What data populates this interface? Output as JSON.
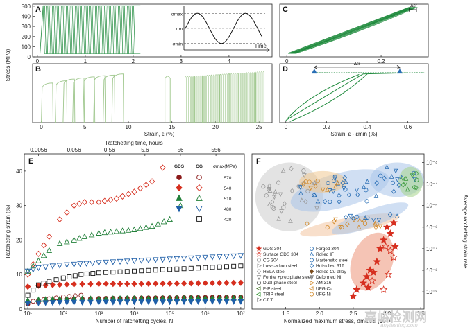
{
  "chart_data": [
    {
      "panel": "A",
      "type": "line",
      "ylabel": "Stress (MPa)",
      "yticks": [
        "0",
        "100",
        "200",
        "300",
        "400",
        "500"
      ],
      "xticks": [
        "0",
        "1",
        "2",
        "3",
        "4"
      ],
      "xlim": [
        -0.1,
        4.9
      ],
      "ylim": [
        0,
        520
      ],
      "series": [
        {
          "color": "#1e8a3c",
          "loops_x_start": [
            0.05,
            0.32,
            0.6,
            0.9,
            1.2,
            1.5,
            1.8,
            2.1
          ],
          "upper_stress": 520
        }
      ],
      "inset": {
        "labels": [
          "σmax",
          "σm",
          "σmin"
        ],
        "xlabel": "Time",
        "level_fractions": [
          0.85,
          0.5,
          0.15
        ]
      }
    },
    {
      "panel": "B",
      "type": "line",
      "xlabel": "Strain, ε (%)",
      "xticks": [
        "0",
        "5",
        "10",
        "15",
        "20",
        "25"
      ],
      "xlim": [
        -1,
        26.5
      ],
      "ylim": [
        0,
        520
      ],
      "series": [
        {
          "color": "#9fc78d",
          "plateau_stress": [
            350,
            370,
            385,
            395,
            405,
            415,
            420,
            430
          ]
        }
      ]
    },
    {
      "panel": "C",
      "type": "line",
      "xticks": [
        "0",
        "0.2"
      ],
      "xlim": [
        -0.015,
        0.3
      ],
      "ylim": [
        0,
        520
      ],
      "annotations": [
        "Δεr"
      ]
    },
    {
      "panel": "D",
      "type": "line",
      "xlabel": "Strain, ε - εmin (%)",
      "xticks": [
        "0",
        "0.2",
        "0.4",
        "0.6"
      ],
      "xlim": [
        -0.03,
        0.7
      ],
      "ylim": [
        0,
        520
      ],
      "annotations": [
        "Δεr"
      ],
      "arrow_range": [
        0.14,
        0.56
      ]
    },
    {
      "panel": "E",
      "type": "scatter",
      "xlabel": "Number of ratchetting cycles, N",
      "ylabel": "Ratchetting strain (%)",
      "top_axis_label": "Ratchetting time, hours",
      "top_ticks": [
        "0.0056",
        "0.056",
        "0.56",
        "5.6",
        "56",
        "556"
      ],
      "top_tick_x_log": [
        1.3,
        2.3,
        3.3,
        4.3,
        5.3,
        6.3
      ],
      "xlim_log": [
        0.9,
        7.1
      ],
      "ylim": [
        0,
        45
      ],
      "yticks": [
        "0",
        "10",
        "20",
        "30",
        "40"
      ],
      "xticks": [
        "10¹",
        "10²",
        "10³",
        "10⁴",
        "10⁵",
        "10⁶",
        "10⁷"
      ],
      "legend": {
        "col1": "GDS",
        "col2": "CG",
        "col3": "σmax(MPa)"
      },
      "series": [
        {
          "name": "570",
          "marker": "circle",
          "color": "#8b1a1a",
          "gds": [
            [
              1,
              1.5
            ],
            [
              1.3,
              2
            ],
            [
              1.7,
              2.5
            ],
            [
              2.3,
              2.9
            ],
            [
              3,
              3.1
            ],
            [
              4,
              3.2
            ],
            [
              5,
              3.3
            ],
            [
              6,
              3.4
            ],
            [
              7,
              3.5
            ]
          ],
          "cg": [
            [
              1.0,
              2.0
            ],
            [
              1.3,
              2.5
            ],
            [
              1.6,
              3.0
            ],
            [
              2.0,
              3.5
            ],
            [
              2.5,
              4.0
            ]
          ]
        },
        {
          "name": "540",
          "marker": "diamond",
          "color": "#d62f1f",
          "gds": [
            [
              1,
              6.5
            ],
            [
              1.3,
              6.8
            ],
            [
              1.7,
              7.0
            ],
            [
              2.3,
              7.2
            ],
            [
              3,
              7.3
            ],
            [
              4,
              7.3
            ],
            [
              5,
              7.4
            ],
            [
              6,
              7.5
            ],
            [
              7,
              7.6
            ]
          ],
          "cg": [
            [
              1.0,
              10
            ],
            [
              1.3,
              16
            ],
            [
              1.6,
              21
            ],
            [
              1.9,
              26
            ],
            [
              2.3,
              30
            ],
            [
              2.6,
              31
            ],
            [
              3,
              31
            ],
            [
              3.5,
              32
            ],
            [
              4,
              34
            ],
            [
              4.5,
              37
            ],
            [
              4.8,
              41
            ]
          ]
        },
        {
          "name": "510",
          "marker": "triangle-up",
          "color": "#22803a",
          "gds": [
            [
              1,
              2.5
            ],
            [
              1.3,
              2.7
            ],
            [
              1.7,
              2.9
            ],
            [
              2.3,
              3.0
            ],
            [
              3,
              3.0
            ],
            [
              4,
              3.1
            ],
            [
              5,
              3.1
            ],
            [
              6,
              3.2
            ],
            [
              7,
              3.2
            ]
          ],
          "cg": [
            [
              1.0,
              11
            ],
            [
              1.3,
              14
            ],
            [
              1.6,
              17
            ],
            [
              1.9,
              19
            ],
            [
              2.3,
              20
            ],
            [
              2.6,
              21
            ],
            [
              3,
              22
            ],
            [
              3.5,
              22.5
            ],
            [
              4,
              23
            ],
            [
              4.5,
              24
            ],
            [
              5,
              26
            ],
            [
              5.3,
              30
            ]
          ]
        },
        {
          "name": "480",
          "marker": "triangle-down",
          "color": "#1f5fa8",
          "gds": [
            [
              1,
              1.6
            ],
            [
              1.3,
              1.8
            ],
            [
              1.7,
              1.9
            ],
            [
              2.3,
              2.0
            ],
            [
              3,
              2.0
            ],
            [
              4,
              2.1
            ],
            [
              5,
              2.1
            ],
            [
              6,
              2.2
            ],
            [
              7,
              2.2
            ]
          ],
          "cg": [
            [
              1.0,
              11
            ],
            [
              1.3,
              12
            ],
            [
              1.7,
              12.5
            ],
            [
              2.3,
              13
            ],
            [
              3,
              13.5
            ],
            [
              4,
              14
            ],
            [
              5,
              14.5
            ],
            [
              6,
              15
            ],
            [
              7,
              15.5
            ]
          ]
        },
        {
          "name": "420",
          "marker": "square",
          "color": "#111111",
          "gds": [],
          "cg": [
            [
              1.0,
              4
            ],
            [
              1.3,
              7
            ],
            [
              1.6,
              8
            ],
            [
              2.0,
              9
            ],
            [
              2.5,
              10
            ],
            [
              3,
              10.5
            ],
            [
              4,
              11
            ],
            [
              5,
              11.5
            ],
            [
              6,
              12
            ],
            [
              7,
              12.5
            ]
          ]
        }
      ]
    },
    {
      "panel": "F",
      "type": "scatter",
      "xlabel": "Normalized maximum stress, σmax/E (10⁻³)",
      "ylabel": "Average ratchetting strain rate",
      "xticks": [
        "1.5",
        "2.0",
        "2.5",
        "3.0",
        "3.5"
      ],
      "xlim": [
        1.0,
        3.55
      ],
      "yticks_right": [
        "10⁻³",
        "10⁻⁴",
        "10⁻⁵",
        "10⁻⁶",
        "10⁻⁷",
        "10⁻⁸",
        "10⁻⁹"
      ],
      "ylim_log": [
        -9.8,
        -2.6
      ],
      "legend": [
        {
          "name": "GDS 304",
          "marker": "star-filled",
          "color": "#d62f1f"
        },
        {
          "name": "Surface GDS 304",
          "marker": "star-open",
          "color": "#d62f1f"
        },
        {
          "name": "CG 304",
          "marker": "circle-open",
          "color": "#9a9a9a"
        },
        {
          "name": "Low-carbon steel",
          "marker": "triangle-right-open",
          "color": "#9a9a9a"
        },
        {
          "name": "HSLA steel",
          "marker": "diamond-open",
          "color": "#9a9a9a"
        },
        {
          "name": "Ferrite +precipitate steel",
          "marker": "triangle-down-open",
          "color": "#555555"
        },
        {
          "name": "Dual-phase steel",
          "marker": "circle-open",
          "color": "#555555"
        },
        {
          "name": "F-P steel",
          "marker": "triangle-left-open",
          "color": "#4a7a30"
        },
        {
          "name": "TRIP steel",
          "marker": "triangle-left-open",
          "color": "#3a9a3a"
        },
        {
          "name": "CT Ti",
          "marker": "triangle-right-open",
          "color": "#555555"
        },
        {
          "name": "Forged 304",
          "marker": "circle-open",
          "color": "#2a6fb5"
        },
        {
          "name": "Rolled IF",
          "marker": "triangle-up-open",
          "color": "#2a6fb5"
        },
        {
          "name": "Martensitic steel",
          "marker": "circle-open",
          "color": "#2a6fb5"
        },
        {
          "name": "Hot-rolled 316",
          "marker": "diamond-open",
          "color": "#2a6fb5"
        },
        {
          "name": "Rolled Cu alloy",
          "marker": "diamond-filled",
          "color": "#7a4a1a"
        },
        {
          "name": "Deformed Ni",
          "marker": "triangle-down-open",
          "color": "#555555"
        },
        {
          "name": "AM 316",
          "marker": "triangle-right-open",
          "color": "#d28a2a"
        },
        {
          "name": "UFG Cu",
          "marker": "triangle-left-open",
          "color": "#d28a2a"
        },
        {
          "name": "UFG Ni",
          "marker": "circle-open",
          "color": "#d28a2a"
        }
      ],
      "regions": [
        {
          "color": "#cccccc",
          "center": [
            1.55,
            -4.6
          ],
          "r": [
            0.5,
            1.6
          ],
          "rot": 10
        },
        {
          "color": "#a9c4ea",
          "center": [
            2.3,
            -4.3
          ],
          "r": [
            0.75,
            0.8
          ],
          "rot": -15
        },
        {
          "color": "#a9c4ea",
          "center": [
            3.15,
            -3.8
          ],
          "r": [
            0.4,
            0.8
          ],
          "rot": 0
        },
        {
          "color": "#a5d38a",
          "center": [
            3.35,
            -3.9
          ],
          "r": [
            0.18,
            0.7
          ],
          "rot": 0
        },
        {
          "color": "#f0c891",
          "center": [
            2.05,
            -3.9
          ],
          "r": [
            0.35,
            0.5
          ],
          "rot": 0
        },
        {
          "color": "#f2c4a0",
          "center": [
            2.45,
            -5.9
          ],
          "r": [
            0.75,
            0.35
          ],
          "rot": -10
        },
        {
          "color": "#a9c4ea",
          "center": [
            2.75,
            -5.6
          ],
          "r": [
            0.6,
            0.4
          ],
          "rot": -20
        },
        {
          "color": "#ec9478",
          "center": [
            2.78,
            -7.6
          ],
          "r": [
            0.3,
            1.4
          ],
          "rot": 22
        }
      ],
      "gds304": [
        [
          2.5,
          -9.2
        ],
        [
          2.55,
          -8.9
        ],
        [
          2.65,
          -8.6
        ],
        [
          2.7,
          -8.3
        ],
        [
          2.72,
          -8.8
        ],
        [
          2.8,
          -8.1
        ],
        [
          2.85,
          -7.6
        ],
        [
          2.9,
          -7.0
        ],
        [
          2.95,
          -6.6
        ],
        [
          3.0,
          -6.0
        ],
        [
          3.05,
          -6.3
        ],
        [
          3.1,
          -5.8
        ],
        [
          3.12,
          -6.9
        ],
        [
          2.75,
          -8.0
        ]
      ],
      "surface_gds304": [
        [
          2.78,
          -8.5
        ],
        [
          2.98,
          -6.9
        ],
        [
          3.05,
          -7.1
        ],
        [
          3.1,
          -7.4
        ],
        [
          3.02,
          -8.2
        ],
        [
          2.95,
          -8.9
        ]
      ]
    }
  ],
  "watermark": {
    "main": "嘉峪检测网",
    "sub": "anytesting.com"
  }
}
